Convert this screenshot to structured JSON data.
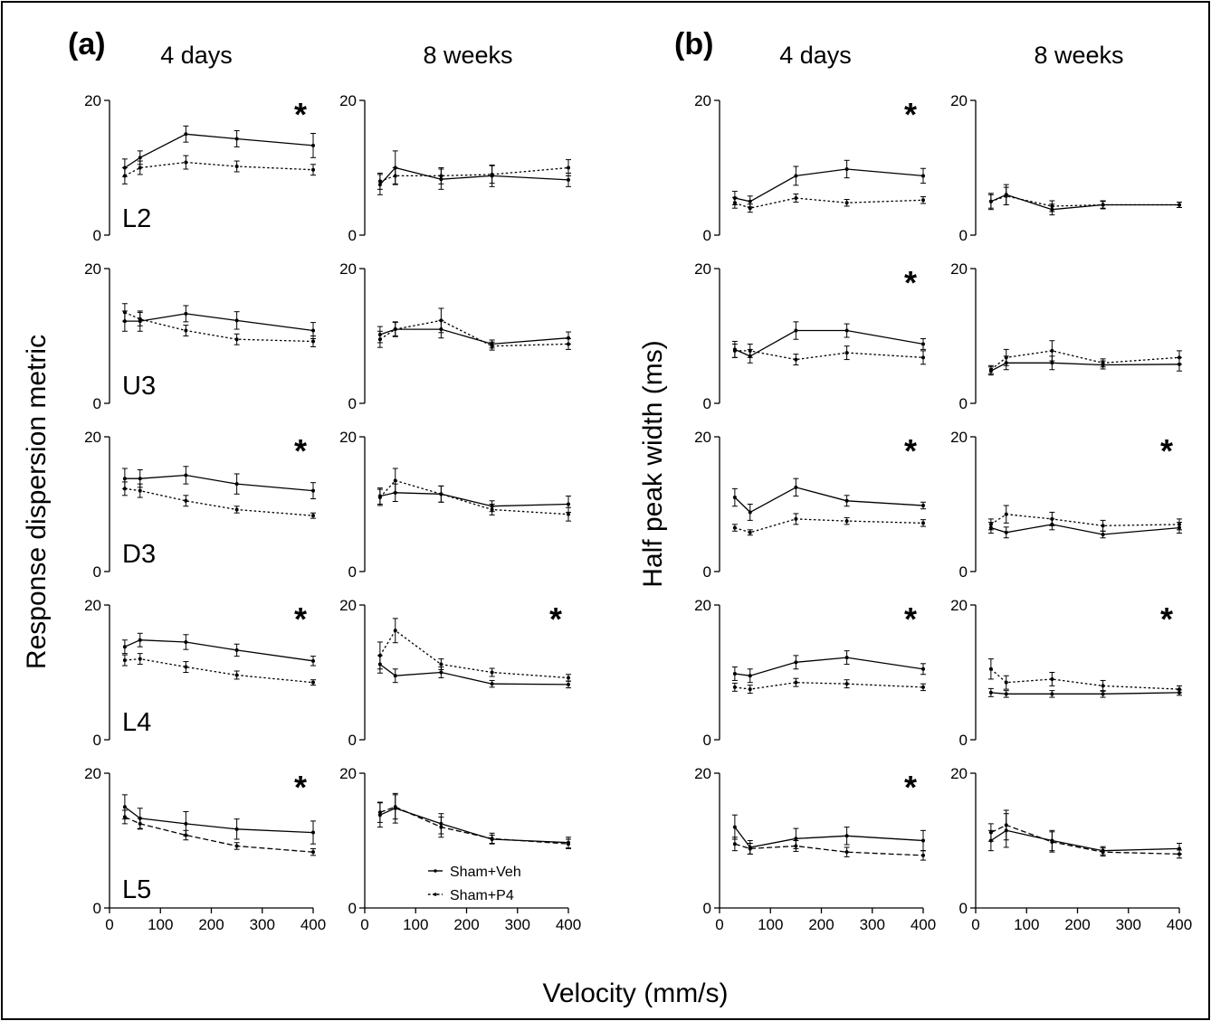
{
  "figure": {
    "panel_labels": [
      "(a)",
      "(b)"
    ],
    "column_headers": [
      "4 days",
      "8 weeks",
      "4 days",
      "8 weeks"
    ],
    "row_labels": [
      "L2",
      "U3",
      "D3",
      "L4",
      "L5"
    ],
    "ylabel_left": "Response dispersion metric",
    "ylabel_right": "Half peak width (ms)",
    "xlabel": "Velocity (mm/s)",
    "significance_mark": "*",
    "legend": [
      "Sham+Veh",
      "Sham+P4"
    ]
  },
  "chart_data": {
    "type": "line",
    "x": [
      30,
      60,
      150,
      250,
      400
    ],
    "xlim": [
      0,
      400
    ],
    "ylim": [
      0,
      20
    ],
    "xticks": [
      "0",
      "100",
      "200",
      "300",
      "400"
    ],
    "yticks": [
      "0",
      "20"
    ],
    "series_names": [
      "Sham+Veh",
      "Sham+P4"
    ],
    "panels": [
      {
        "group": "(a)",
        "row": "L2",
        "col": "4 days",
        "sig": true,
        "veh": [
          10,
          11.5,
          15,
          14.3,
          13.3
        ],
        "veh_err": [
          1.3,
          1,
          1.2,
          1.2,
          1.8
        ],
        "p4": [
          8.8,
          10,
          10.8,
          10.2,
          9.7
        ],
        "p4_err": [
          1.2,
          1,
          1,
          0.8,
          0.8
        ]
      },
      {
        "group": "(a)",
        "row": "L2",
        "col": "8 weeks",
        "sig": false,
        "veh": [
          7.5,
          10,
          8.3,
          8.8,
          8.2
        ],
        "veh_err": [
          1.5,
          2.5,
          1.5,
          1.6,
          1
        ],
        "p4": [
          8,
          8.8,
          8.8,
          9,
          10
        ],
        "p4_err": [
          1.2,
          1.2,
          1.2,
          1.3,
          1.2
        ]
      },
      {
        "group": "(a)",
        "row": "U3",
        "col": "4 days",
        "sig": false,
        "veh": [
          12.2,
          12.2,
          13.3,
          12.3,
          10.8
        ],
        "veh_err": [
          1.5,
          1.5,
          1.2,
          1.3,
          1.2
        ],
        "p4": [
          13.5,
          12.5,
          10.8,
          9.5,
          9.2
        ],
        "p4_err": [
          1.3,
          1,
          0.8,
          0.8,
          0.8
        ]
      },
      {
        "group": "(a)",
        "row": "U3",
        "col": "8 weeks",
        "sig": false,
        "veh": [
          10.2,
          11,
          11,
          8.8,
          9.7
        ],
        "veh_err": [
          1.2,
          1.1,
          1.3,
          0.6,
          0.9
        ],
        "p4": [
          9.5,
          11,
          12.3,
          8.5,
          8.8
        ],
        "p4_err": [
          1.2,
          1,
          1.8,
          0.6,
          0.8
        ]
      },
      {
        "group": "(a)",
        "row": "D3",
        "col": "4 days",
        "sig": true,
        "veh": [
          13.8,
          13.8,
          14.3,
          13,
          12
        ],
        "veh_err": [
          1.5,
          1.3,
          1.3,
          1.5,
          1.2
        ],
        "p4": [
          12.3,
          12,
          10.5,
          9.2,
          8.3
        ],
        "p4_err": [
          1,
          1,
          0.8,
          0.5,
          0.4
        ]
      },
      {
        "group": "(a)",
        "row": "D3",
        "col": "8 weeks",
        "sig": false,
        "veh": [
          11.2,
          11.7,
          11.5,
          9.7,
          10
        ],
        "veh_err": [
          1.2,
          1.3,
          1.2,
          0.8,
          1.2
        ],
        "p4": [
          11,
          13.5,
          11.5,
          9.2,
          8.5
        ],
        "p4_err": [
          1.2,
          1.8,
          1.2,
          0.8,
          1
        ]
      },
      {
        "group": "(a)",
        "row": "L4",
        "col": "4 days",
        "sig": true,
        "veh": [
          13.8,
          14.8,
          14.5,
          13.3,
          11.7
        ],
        "veh_err": [
          1,
          1,
          1.1,
          0.9,
          0.7
        ],
        "p4": [
          11.8,
          12,
          10.8,
          9.6,
          8.5
        ],
        "p4_err": [
          0.8,
          0.8,
          0.8,
          0.6,
          0.4
        ]
      },
      {
        "group": "(a)",
        "row": "L4",
        "col": "8 weeks",
        "sig": true,
        "veh": [
          11.2,
          9.5,
          10,
          8.3,
          8.2
        ],
        "veh_err": [
          1.3,
          1,
          0.8,
          0.5,
          0.5
        ],
        "p4": [
          12.5,
          16.2,
          11.2,
          10,
          9.2
        ],
        "p4_err": [
          2,
          1.8,
          0.8,
          0.6,
          0.5
        ]
      },
      {
        "group": "(a)",
        "row": "L5",
        "col": "4 days",
        "sig": true,
        "veh": [
          15,
          13.3,
          12.5,
          11.7,
          11.2
        ],
        "veh_err": [
          1.8,
          1.5,
          1.8,
          1.5,
          1.7
        ],
        "p4": [
          13.5,
          12.5,
          10.8,
          9.2,
          8.3
        ],
        "p4_err": [
          1,
          0.8,
          0.7,
          0.5,
          0.5
        ]
      },
      {
        "group": "(a)",
        "row": "L5",
        "col": "8 weeks",
        "sig": false,
        "veh": [
          13.8,
          14.8,
          12.5,
          10.2,
          9.7
        ],
        "veh_err": [
          1.8,
          2.2,
          1.5,
          0.6,
          0.8
        ],
        "p4": [
          14.2,
          15,
          12,
          10.3,
          9.5
        ],
        "p4_err": [
          1.5,
          1.8,
          1.5,
          0.8,
          0.7
        ]
      },
      {
        "group": "(b)",
        "row": "L2",
        "col": "4 days",
        "sig": true,
        "veh": [
          5.5,
          5,
          8.8,
          9.8,
          8.8
        ],
        "veh_err": [
          1,
          0.8,
          1.4,
          1.3,
          1.1
        ],
        "p4": [
          4.8,
          4,
          5.5,
          4.8,
          5.2
        ],
        "p4_err": [
          0.8,
          0.6,
          0.6,
          0.5,
          0.5
        ]
      },
      {
        "group": "(b)",
        "row": "L2",
        "col": "8 weeks",
        "sig": false,
        "veh": [
          5,
          6,
          3.8,
          4.5,
          4.5
        ],
        "veh_err": [
          1.2,
          1.5,
          0.8,
          0.6,
          0.4
        ],
        "p4": [
          5,
          5.8,
          4.3,
          4.5,
          4.5
        ],
        "p4_err": [
          1,
          1.3,
          0.8,
          0.5,
          0.4
        ]
      },
      {
        "group": "(b)",
        "row": "U3",
        "col": "4 days",
        "sig": true,
        "veh": [
          8,
          7,
          10.8,
          10.8,
          8.8
        ],
        "veh_err": [
          1.2,
          1,
          1.3,
          1,
          0.8
        ],
        "p4": [
          7.8,
          7.8,
          6.5,
          7.5,
          6.8
        ],
        "p4_err": [
          1,
          1,
          0.8,
          1,
          1
        ]
      },
      {
        "group": "(b)",
        "row": "U3",
        "col": "8 weeks",
        "sig": false,
        "veh": [
          4.8,
          6,
          6,
          5.7,
          5.8
        ],
        "veh_err": [
          0.6,
          1,
          1,
          0.6,
          1
        ],
        "p4": [
          5,
          6.8,
          7.8,
          6,
          6.8
        ],
        "p4_err": [
          0.6,
          1.2,
          1.5,
          0.6,
          1
        ]
      },
      {
        "group": "(b)",
        "row": "D3",
        "col": "4 days",
        "sig": true,
        "veh": [
          11,
          8.8,
          12.5,
          10.5,
          9.8
        ],
        "veh_err": [
          1.3,
          1.2,
          1.3,
          0.8,
          0.5
        ],
        "p4": [
          6.5,
          5.8,
          7.8,
          7.5,
          7.2
        ],
        "p4_err": [
          0.5,
          0.4,
          0.8,
          0.5,
          0.5
        ]
      },
      {
        "group": "(b)",
        "row": "D3",
        "col": "8 weeks",
        "sig": true,
        "veh": [
          6.5,
          5.8,
          7,
          5.5,
          6.5
        ],
        "veh_err": [
          0.8,
          0.8,
          0.8,
          0.5,
          0.8
        ],
        "p4": [
          7,
          8.5,
          7.8,
          6.8,
          7
        ],
        "p4_err": [
          0.8,
          1.3,
          1,
          0.8,
          0.8
        ]
      },
      {
        "group": "(b)",
        "row": "L4",
        "col": "4 days",
        "sig": true,
        "veh": [
          9.8,
          9.5,
          11.5,
          12.2,
          10.5
        ],
        "veh_err": [
          1,
          1,
          1,
          1,
          0.8
        ],
        "p4": [
          7.8,
          7.5,
          8.5,
          8.3,
          7.8
        ],
        "p4_err": [
          0.6,
          0.6,
          0.6,
          0.6,
          0.5
        ]
      },
      {
        "group": "(b)",
        "row": "L4",
        "col": "8 weeks",
        "sig": true,
        "veh": [
          7,
          6.8,
          6.8,
          6.8,
          7
        ],
        "veh_err": [
          0.6,
          0.5,
          0.5,
          0.5,
          0.4
        ],
        "p4": [
          10.5,
          8.5,
          9,
          8,
          7.5
        ],
        "p4_err": [
          1.5,
          1,
          1,
          0.8,
          0.5
        ]
      },
      {
        "group": "(b)",
        "row": "L5",
        "col": "4 days",
        "sig": true,
        "veh": [
          12,
          9,
          10.3,
          10.7,
          10
        ],
        "veh_err": [
          1.8,
          1,
          1.5,
          1.3,
          1.5
        ],
        "p4": [
          9.5,
          8.8,
          9.2,
          8.3,
          7.8
        ],
        "p4_err": [
          1,
          0.8,
          0.8,
          0.7,
          0.7
        ]
      },
      {
        "group": "(b)",
        "row": "L5",
        "col": "8 weeks",
        "sig": false,
        "veh": [
          10,
          11.5,
          10,
          8.5,
          8.8
        ],
        "veh_err": [
          1.5,
          2.5,
          1.5,
          0.6,
          0.8
        ],
        "p4": [
          11.2,
          12.3,
          9.8,
          8.3,
          8
        ],
        "p4_err": [
          1.3,
          2.2,
          1.5,
          0.6,
          0.6
        ]
      }
    ]
  }
}
